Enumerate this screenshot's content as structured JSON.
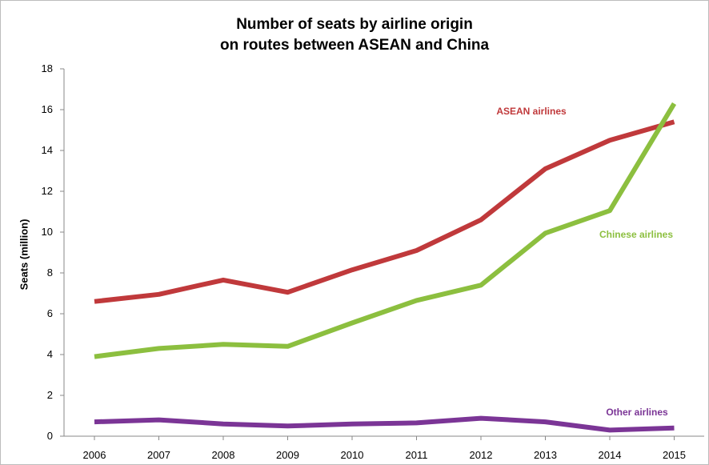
{
  "chart_data": {
    "type": "line",
    "title_line1": "Number of seats by airline origin",
    "title_line2": "on routes between ASEAN and China",
    "xlabel": "",
    "ylabel": "Seats (million)",
    "ylim": [
      0,
      18
    ],
    "yticks": [
      0,
      2,
      4,
      6,
      8,
      10,
      12,
      14,
      16,
      18
    ],
    "x": [
      "2006",
      "2007",
      "2008",
      "2009",
      "2010",
      "2011",
      "2012",
      "2013",
      "2014",
      "2015"
    ],
    "grid": false,
    "series": [
      {
        "name": "ASEAN airlines",
        "color": "#c0393b",
        "values": [
          6.6,
          6.95,
          7.65,
          7.05,
          8.15,
          9.1,
          10.6,
          13.1,
          14.5,
          15.4
        ]
      },
      {
        "name": "Chinese  airlines",
        "color": "#8cbf3f",
        "values": [
          3.9,
          4.3,
          4.5,
          4.4,
          5.55,
          6.65,
          7.4,
          9.95,
          11.05,
          16.3
        ]
      },
      {
        "name": "Other  airlines",
        "color": "#7b3596",
        "values": [
          0.7,
          0.8,
          0.6,
          0.5,
          0.6,
          0.65,
          0.88,
          0.7,
          0.3,
          0.4
        ]
      }
    ]
  }
}
